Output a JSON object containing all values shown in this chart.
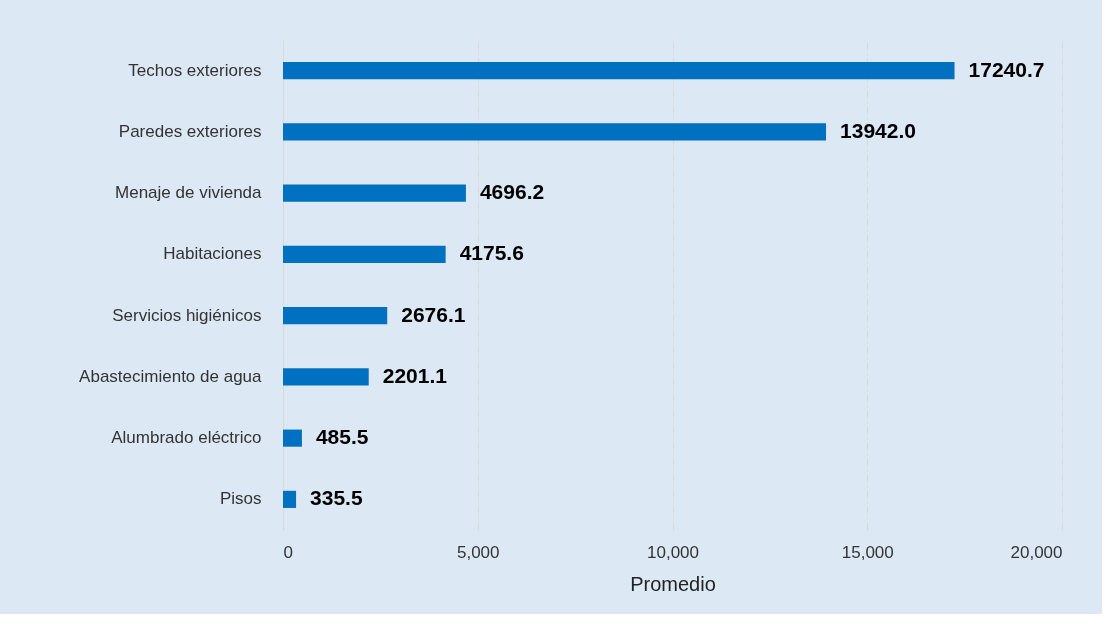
{
  "chart_data": {
    "type": "bar",
    "orientation": "horizontal",
    "xlabel": "Promedio",
    "categories": [
      "Techos exteriores",
      "Paredes exteriores",
      "Menaje de vivienda",
      "Habitaciones",
      "Servicios higiénicos",
      "Abastecimiento de agua",
      "Alumbrado eléctrico",
      "Pisos"
    ],
    "values": [
      17240.7,
      13942.0,
      4696.2,
      4175.6,
      2676.1,
      2201.1,
      485.5,
      335.5
    ],
    "value_labels": [
      "17240.7",
      "13942.0",
      "4696.2",
      "4175.6",
      "2676.1",
      "2201.1",
      "485.5",
      "335.5"
    ],
    "color": "#0070c0",
    "xlim": [
      0,
      20000
    ],
    "xticks": [
      0,
      {
        "value": 5000,
        "label": "5,000"
      },
      {
        "value": 10000,
        "label": "10,000"
      },
      {
        "value": 15000,
        "label": "15,000"
      },
      {
        "value": 20000,
        "label": "20,000"
      }
    ],
    "grid": "x"
  }
}
